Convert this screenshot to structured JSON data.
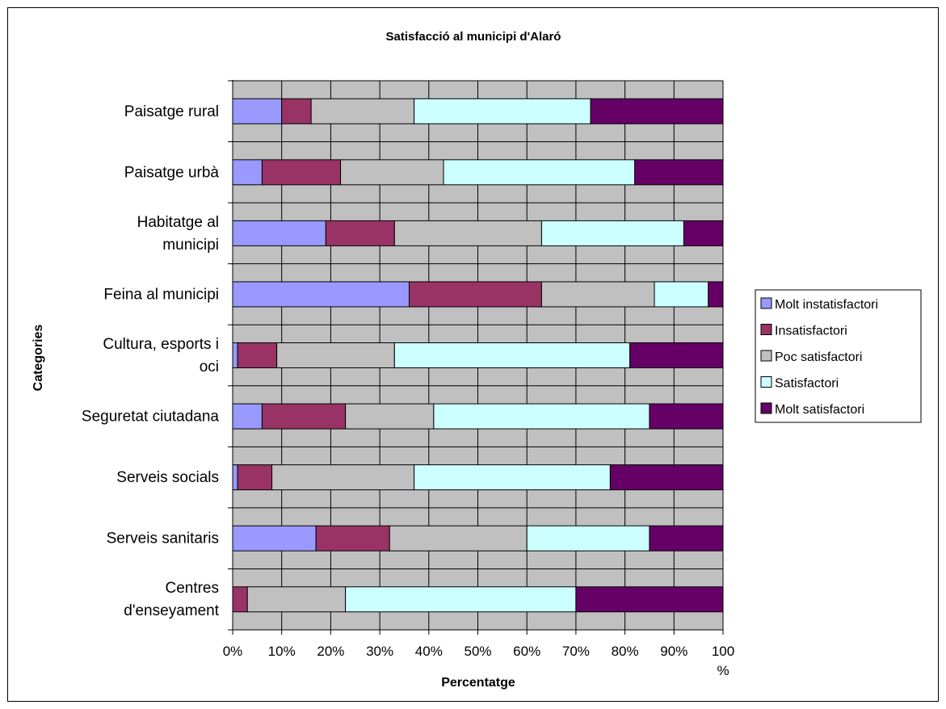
{
  "chart_data": {
    "type": "bar",
    "orientation": "horizontal",
    "stacked": "percent",
    "title": "Satisfacció al municipi d'Alaró",
    "xlabel": "Percentatge",
    "ylabel": "Categories",
    "xlim": [
      0,
      100
    ],
    "xticks": [
      "0%",
      "10%",
      "20%",
      "30%",
      "40%",
      "50%",
      "60%",
      "70%",
      "80%",
      "90%",
      "100 %"
    ],
    "grid": true,
    "legend_position": "right",
    "categories": [
      "Paisatge rural",
      "Paisatge urbà",
      "Habitatge al municipi",
      "Feina al municipi",
      "Cultura, esports i oci",
      "Seguretat ciutadana",
      "Serveis socials",
      "Serveis sanitaris",
      "Centres d'enseyament"
    ],
    "series": [
      {
        "name": "Molt instatisfactori",
        "color": "#9999ff",
        "values": [
          10,
          6,
          19,
          36,
          1,
          6,
          1,
          17,
          0
        ]
      },
      {
        "name": "Insatisfactori",
        "color": "#993366",
        "values": [
          6,
          16,
          14,
          27,
          8,
          17,
          7,
          15,
          3
        ]
      },
      {
        "name": "Poc satisfactori",
        "color": "#c0c0c0",
        "values": [
          21,
          21,
          30,
          23,
          24,
          18,
          29,
          28,
          20
        ]
      },
      {
        "name": "Satisfactori",
        "color": "#ccffff",
        "values": [
          36,
          39,
          29,
          11,
          48,
          44,
          40,
          25,
          47
        ]
      },
      {
        "name": "Molt satisfactori",
        "color": "#660066",
        "values": [
          27,
          18,
          8,
          3,
          19,
          15,
          23,
          15,
          30
        ]
      }
    ]
  }
}
